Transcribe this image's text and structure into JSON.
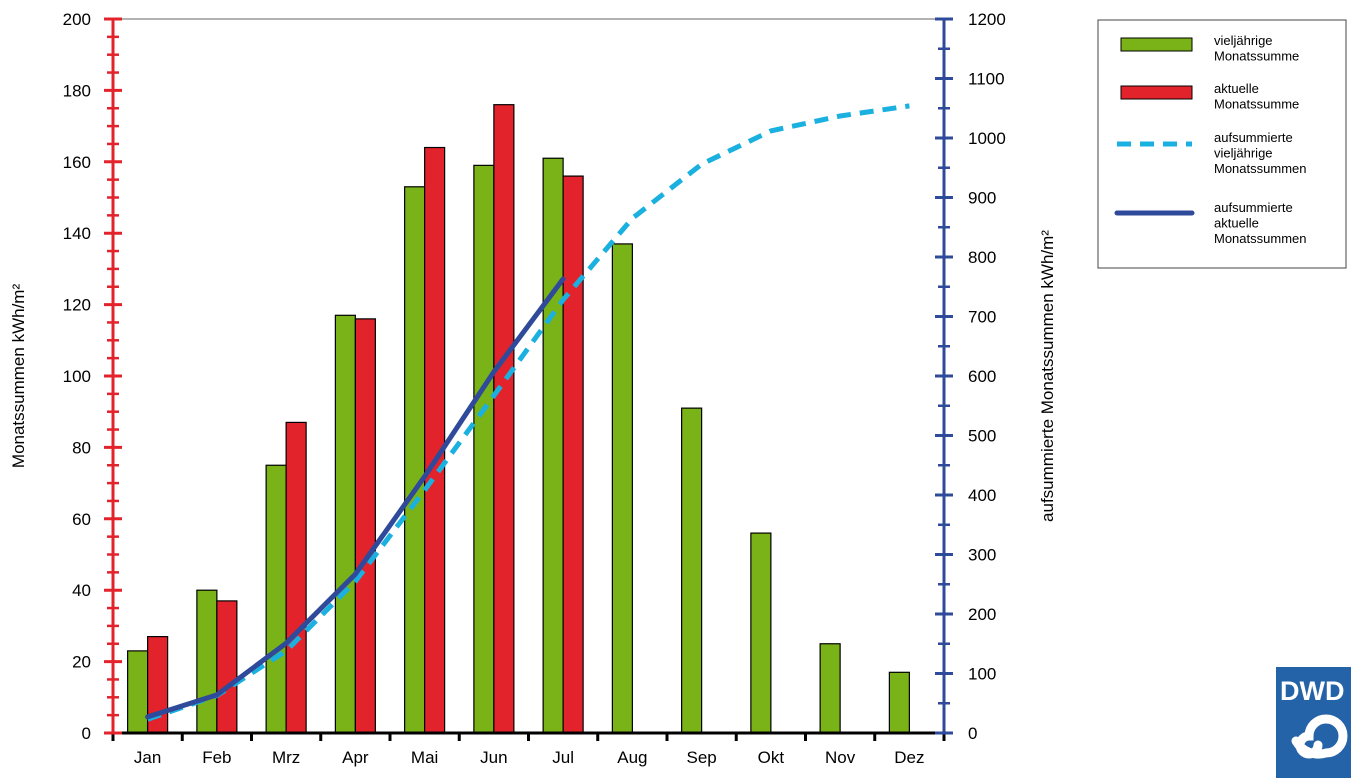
{
  "chart_data": {
    "type": "bar",
    "categories": [
      "Jan",
      "Feb",
      "Mrz",
      "Apr",
      "Mai",
      "Jun",
      "Jul",
      "Aug",
      "Sep",
      "Okt",
      "Nov",
      "Dez"
    ],
    "series": [
      {
        "name": "vieljährige Monatssumme",
        "kind": "bar",
        "axis": "left",
        "color": "#7ab317",
        "values": [
          23,
          40,
          75,
          117,
          153,
          159,
          161,
          137,
          91,
          56,
          25,
          17
        ]
      },
      {
        "name": "aktuelle Monatssumme",
        "kind": "bar",
        "axis": "left",
        "color": "#e3232c",
        "values": [
          27,
          37,
          87,
          116,
          164,
          176,
          156,
          null,
          null,
          null,
          null,
          null
        ]
      },
      {
        "name": "aufsummierte vieljährige Monatssummen",
        "kind": "line",
        "style": "dashed",
        "axis": "right",
        "color": "#1ab0e0",
        "values": [
          23,
          63,
          138,
          255,
          408,
          567,
          728,
          865,
          956,
          1012,
          1037,
          1054
        ]
      },
      {
        "name": "aufsummierte aktuelle Monatssummen",
        "kind": "line",
        "style": "solid",
        "axis": "right",
        "color": "#2f4a9a",
        "values": [
          27,
          64,
          151,
          267,
          431,
          607,
          763,
          null,
          null,
          null,
          null,
          null
        ]
      }
    ],
    "y_left": {
      "label": "Monatssummen kWh/m²",
      "range": [
        0,
        200
      ],
      "ticks": [
        "0",
        "20",
        "40",
        "60",
        "80",
        "100",
        "120",
        "140",
        "160",
        "180",
        "200"
      ],
      "color": "#e3232c"
    },
    "y_right": {
      "label": "aufsummierte Monatssummen kWh/m²",
      "range": [
        0,
        1200
      ],
      "ticks": [
        "0",
        "100",
        "200",
        "300",
        "400",
        "500",
        "600",
        "700",
        "800",
        "900",
        "1000",
        "1100",
        "1200"
      ],
      "color": "#2f4a9a"
    },
    "legend_labels": [
      [
        "vieljährige",
        "Monatssumme"
      ],
      [
        "aktuelle",
        "Monatssumme"
      ],
      [
        "aufsummierte",
        "vieljährige",
        "Monatssummen"
      ],
      [
        "aufsummierte",
        "aktuelle",
        "Monatssummen"
      ]
    ],
    "legend_position": "top-right",
    "grid": false
  },
  "logo": {
    "text": "DWD",
    "color": "#2563a8"
  }
}
